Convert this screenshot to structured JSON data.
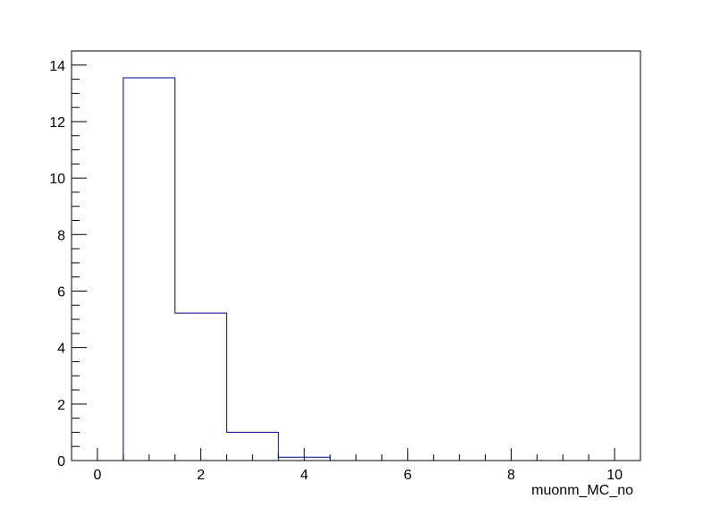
{
  "chart_data": {
    "type": "bar",
    "histogram_style": "step",
    "title": "",
    "xlabel": "muonm_MC_no",
    "ylabel": "",
    "bin_edges": [
      -0.5,
      0.5,
      1.5,
      2.5,
      3.5,
      4.5,
      5.5,
      6.5,
      7.5,
      8.5,
      9.5,
      10.5
    ],
    "values": [
      0,
      13.55,
      5.22,
      1.0,
      0.12,
      0,
      0,
      0,
      0,
      0,
      0
    ],
    "xlim": [
      -0.5,
      10.5
    ],
    "ylim": [
      0,
      14.5
    ],
    "x_ticks": [
      0,
      2,
      4,
      6,
      8,
      10
    ],
    "y_ticks": [
      0,
      2,
      4,
      6,
      8,
      10,
      12,
      14
    ],
    "x_tick_labels": [
      "0",
      "2",
      "4",
      "6",
      "8",
      "10"
    ],
    "y_tick_labels": [
      "0",
      "2",
      "4",
      "6",
      "8",
      "10",
      "12",
      "14"
    ],
    "grid": false,
    "legend": "none",
    "colors": {
      "line": "#000080",
      "frame": "#000000",
      "background": "#ffffff"
    }
  }
}
